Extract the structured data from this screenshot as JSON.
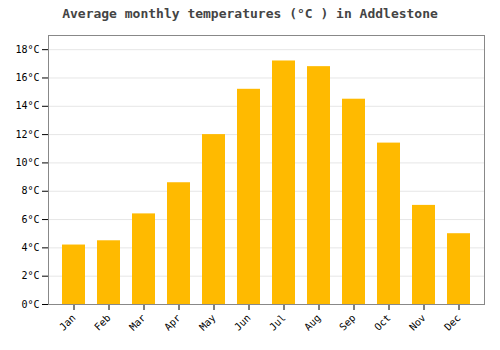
{
  "chart_data": {
    "type": "bar",
    "title": "Average monthly temperatures (°C ) in Addlestone",
    "categories": [
      "Jan",
      "Feb",
      "Mar",
      "Apr",
      "May",
      "Jun",
      "Jul",
      "Aug",
      "Sep",
      "Oct",
      "Nov",
      "Dec"
    ],
    "values": [
      4.2,
      4.5,
      6.4,
      8.6,
      12.0,
      15.2,
      17.2,
      16.8,
      14.5,
      11.4,
      7.0,
      5.0
    ],
    "color": "#FFBA00",
    "ylim": [
      0,
      19
    ],
    "yticks": [
      {
        "value": 0,
        "label": "0°C"
      },
      {
        "value": 2,
        "label": "2°C"
      },
      {
        "value": 4,
        "label": "4°C"
      },
      {
        "value": 6,
        "label": "6°C"
      },
      {
        "value": 8,
        "label": "8°C"
      },
      {
        "value": 10,
        "label": "10°C"
      },
      {
        "value": 12,
        "label": "12°C"
      },
      {
        "value": 14,
        "label": "14°C"
      },
      {
        "value": 16,
        "label": "16°C"
      },
      {
        "value": 18,
        "label": "18°C"
      }
    ],
    "grid": true
  }
}
